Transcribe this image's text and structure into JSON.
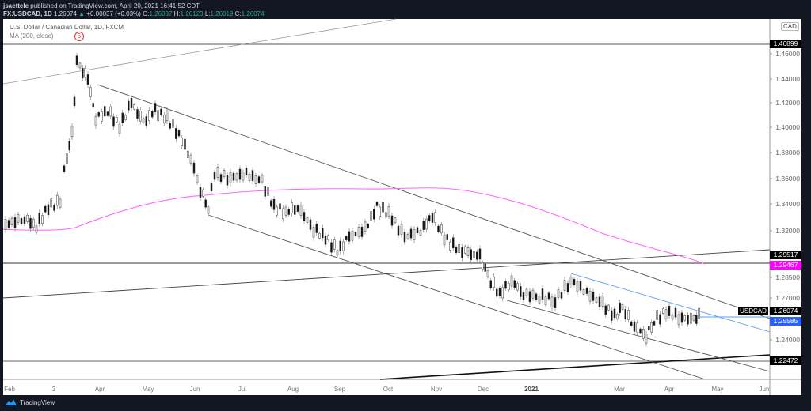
{
  "header": {
    "author": "jsaettele",
    "published": "published on TradingView.com, April 20, 2021 16:41:52 CDT",
    "symbol": "FX:USDCAD, 1D",
    "last": "1.26074",
    "change": "+0.00037 (+0.03%)",
    "o_label": "O:",
    "o": "1.26037",
    "h_label": "H:",
    "h": "1.26123",
    "l_label": "L:",
    "l": "1.26019",
    "c_label": "C:",
    "c": "1.26074"
  },
  "legend": {
    "title": "U.S. Dollar / Canadian Dollar, 1D, FXCM",
    "indicator": "MA (200, close)",
    "wave_label": "5"
  },
  "price_axis": {
    "currency": "CAD",
    "ticks": [
      "1.46000",
      "1.44000",
      "1.42000",
      "1.40000",
      "1.38000",
      "1.36000",
      "1.34000",
      "1.32000",
      "1.28500",
      "1.27000",
      "1.24000"
    ],
    "tags": [
      {
        "value": "1.46899",
        "style": "black"
      },
      {
        "value": "1.29517",
        "style": "black"
      },
      {
        "value": "1.29467",
        "style": "magenta"
      },
      {
        "value": "1.26074",
        "style": "black"
      },
      {
        "value": "1.25585",
        "style": "blue"
      },
      {
        "value": "1.22472",
        "style": "black"
      }
    ],
    "symbol_tag": "USDCAD"
  },
  "time_axis": {
    "labels": [
      "Feb",
      "3",
      "Apr",
      "May",
      "Jun",
      "Jul",
      "Aug",
      "Sep",
      "Oct",
      "Nov",
      "Dec",
      "2021",
      "Mar",
      "Apr",
      "May",
      "Jun"
    ]
  },
  "brand": "TradingView",
  "colors": {
    "background": "#131722",
    "ma": "#ff66ff",
    "blue_line": "#5b9cf6",
    "up_text": "#26a69a"
  },
  "chart_data": {
    "type": "candlestick",
    "title": "U.S. Dollar / Canadian Dollar, 1D, FXCM",
    "xlabel": "",
    "ylabel": "CAD",
    "ylim": [
      1.215,
      1.482
    ],
    "x": [
      "Feb 2020",
      "Mar 2020",
      "Apr 2020",
      "May 2020",
      "Jun 2020",
      "Jul 2020",
      "Aug 2020",
      "Sep 2020",
      "Oct 2020",
      "Nov 2020",
      "Dec 2020",
      "Jan 2021",
      "Feb 2021",
      "Mar 2021",
      "Apr 2021"
    ],
    "series": [
      {
        "name": "USDCAD close (approx monthly)",
        "values": [
          1.33,
          1.41,
          1.405,
          1.395,
          1.358,
          1.355,
          1.335,
          1.31,
          1.33,
          1.31,
          1.275,
          1.275,
          1.265,
          1.255,
          1.2607
        ]
      },
      {
        "name": "MA (200, close)",
        "values": [
          1.322,
          1.322,
          1.33,
          1.342,
          1.35,
          1.352,
          1.353,
          1.352,
          1.353,
          1.355,
          1.345,
          1.33,
          1.315,
          1.302,
          1.2947
        ]
      }
    ],
    "horizontal_levels": [
      1.46899,
      1.29517,
      1.22472,
      1.25585
    ],
    "annotations": [
      "Wave (5) at March 2020 high ~1.4668",
      "Descending channel from Mar 2020 high",
      "Blue downtrend line from Dec 2020 high, broken in April 2021",
      "Last: 1.26074"
    ],
    "grid": false,
    "legend_position": "top-left"
  }
}
